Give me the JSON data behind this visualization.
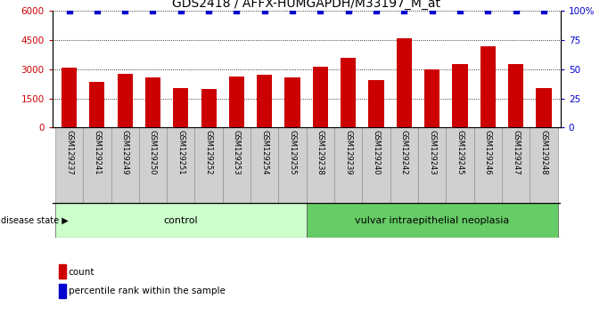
{
  "title": "GDS2418 / AFFX-HUMGAPDH/M33197_M_at",
  "samples": [
    "GSM129237",
    "GSM129241",
    "GSM129249",
    "GSM129250",
    "GSM129251",
    "GSM129252",
    "GSM129253",
    "GSM129254",
    "GSM129255",
    "GSM129238",
    "GSM129239",
    "GSM129240",
    "GSM129242",
    "GSM129243",
    "GSM129245",
    "GSM129246",
    "GSM129247",
    "GSM129248"
  ],
  "counts": [
    3100,
    2350,
    2750,
    2600,
    2050,
    2000,
    2650,
    2700,
    2600,
    3150,
    3600,
    2450,
    4600,
    3000,
    3250,
    4200,
    3250,
    2050
  ],
  "percentiles": [
    100,
    100,
    100,
    100,
    100,
    100,
    100,
    100,
    100,
    100,
    100,
    100,
    100,
    100,
    100,
    100,
    100,
    100
  ],
  "bar_color": "#cc0000",
  "percentile_color": "#0000cc",
  "ylim_left": [
    0,
    6000
  ],
  "ylim_right": [
    0,
    100
  ],
  "yticks_left": [
    0,
    1500,
    3000,
    4500,
    6000
  ],
  "yticks_right": [
    0,
    25,
    50,
    75,
    100
  ],
  "control_indices": [
    0,
    1,
    2,
    3,
    4,
    5,
    6,
    7,
    8
  ],
  "disease_indices": [
    9,
    10,
    11,
    12,
    13,
    14,
    15,
    16,
    17
  ],
  "control_label": "control",
  "disease_label": "vulvar intraepithelial neoplasia",
  "disease_state_label": "disease state",
  "legend_count_label": "count",
  "legend_percentile_label": "percentile rank within the sample",
  "control_bg": "#ccffcc",
  "disease_bg": "#66cc66",
  "xlabel_bg": "#d0d0d0",
  "grid_color": "#000000",
  "title_fontsize": 10,
  "tick_fontsize": 7.5,
  "label_fontsize": 8
}
